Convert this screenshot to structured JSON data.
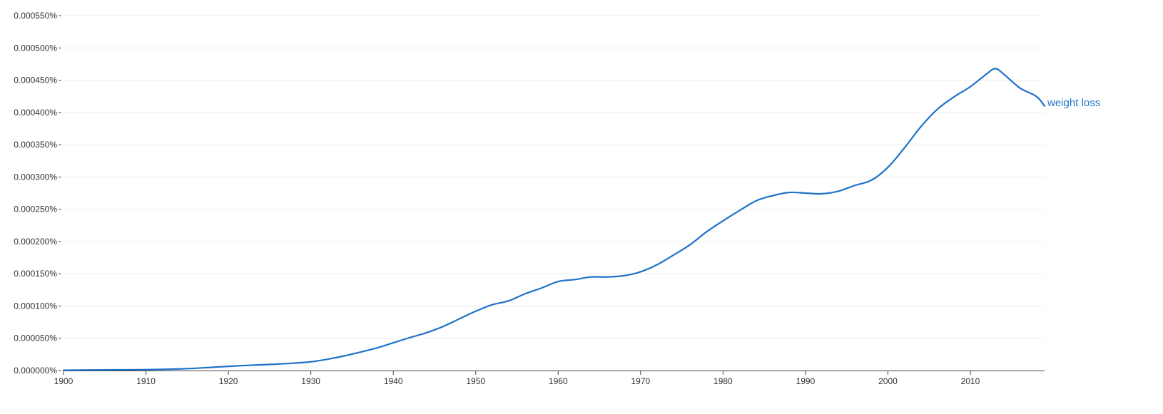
{
  "chart_data": {
    "type": "line",
    "title": "",
    "xlabel": "",
    "ylabel": "",
    "xlim": [
      1900,
      2019
    ],
    "ylim": [
      0,
      0.00055
    ],
    "grid": true,
    "y_ticks": [
      0,
      5e-05,
      0.0001,
      0.00015,
      0.0002,
      0.00025,
      0.0003,
      0.00035,
      0.0004,
      0.00045,
      0.0005,
      0.00055
    ],
    "y_tick_labels": [
      "0.000000%",
      "0.000050%",
      "0.000100%",
      "0.000150%",
      "0.000200%",
      "0.000250%",
      "0.000300%",
      "0.000350%",
      "0.000400%",
      "0.000450%",
      "0.000500%",
      "0.000550%"
    ],
    "x_ticks": [
      1900,
      1910,
      1920,
      1930,
      1940,
      1950,
      1960,
      1970,
      1980,
      1990,
      2000,
      2010
    ],
    "x_tick_labels": [
      "1900",
      "1910",
      "1920",
      "1930",
      "1940",
      "1950",
      "1960",
      "1970",
      "1980",
      "1990",
      "2000",
      "2010"
    ],
    "series": [
      {
        "name": "weight loss",
        "color": "#1f72c9",
        "x": [
          1900,
          1902,
          1905,
          1908,
          1910,
          1912,
          1914,
          1916,
          1918,
          1920,
          1922,
          1924,
          1926,
          1928,
          1930,
          1932,
          1934,
          1936,
          1938,
          1940,
          1942,
          1944,
          1946,
          1948,
          1950,
          1952,
          1954,
          1956,
          1958,
          1960,
          1962,
          1964,
          1966,
          1968,
          1970,
          1972,
          1974,
          1976,
          1978,
          1980,
          1982,
          1984,
          1986,
          1988,
          1990,
          1992,
          1994,
          1996,
          1998,
          2000,
          2002,
          2004,
          2006,
          2008,
          2010,
          2012,
          2013,
          2014,
          2016,
          2018,
          2019
        ],
        "values": [
          5e-07,
          7e-07,
          1e-06,
          1.2e-06,
          1.4e-06,
          1.8e-06,
          2.5e-06,
          3.5e-06,
          5e-06,
          6.5e-06,
          7.8e-06,
          9e-06,
          1e-05,
          1.15e-05,
          1.35e-05,
          1.75e-05,
          2.25e-05,
          2.85e-05,
          3.5e-05,
          4.3e-05,
          5.1e-05,
          5.85e-05,
          6.8e-05,
          8e-05,
          9.2e-05,
          0.000102,
          0.000108,
          0.000119,
          0.000128,
          0.000138,
          0.000141,
          0.000145,
          0.000145,
          0.000147,
          0.000153,
          0.000164,
          0.000179,
          0.000195,
          0.000215,
          0.000232,
          0.000248,
          0.000263,
          0.000271,
          0.000276,
          0.000275,
          0.000274,
          0.000278,
          0.000287,
          0.000295,
          0.000315,
          0.000345,
          0.000378,
          0.000405,
          0.000424,
          0.00044,
          0.00046,
          0.000468,
          0.00046,
          0.000438,
          0.000425,
          0.00041
        ]
      }
    ]
  }
}
